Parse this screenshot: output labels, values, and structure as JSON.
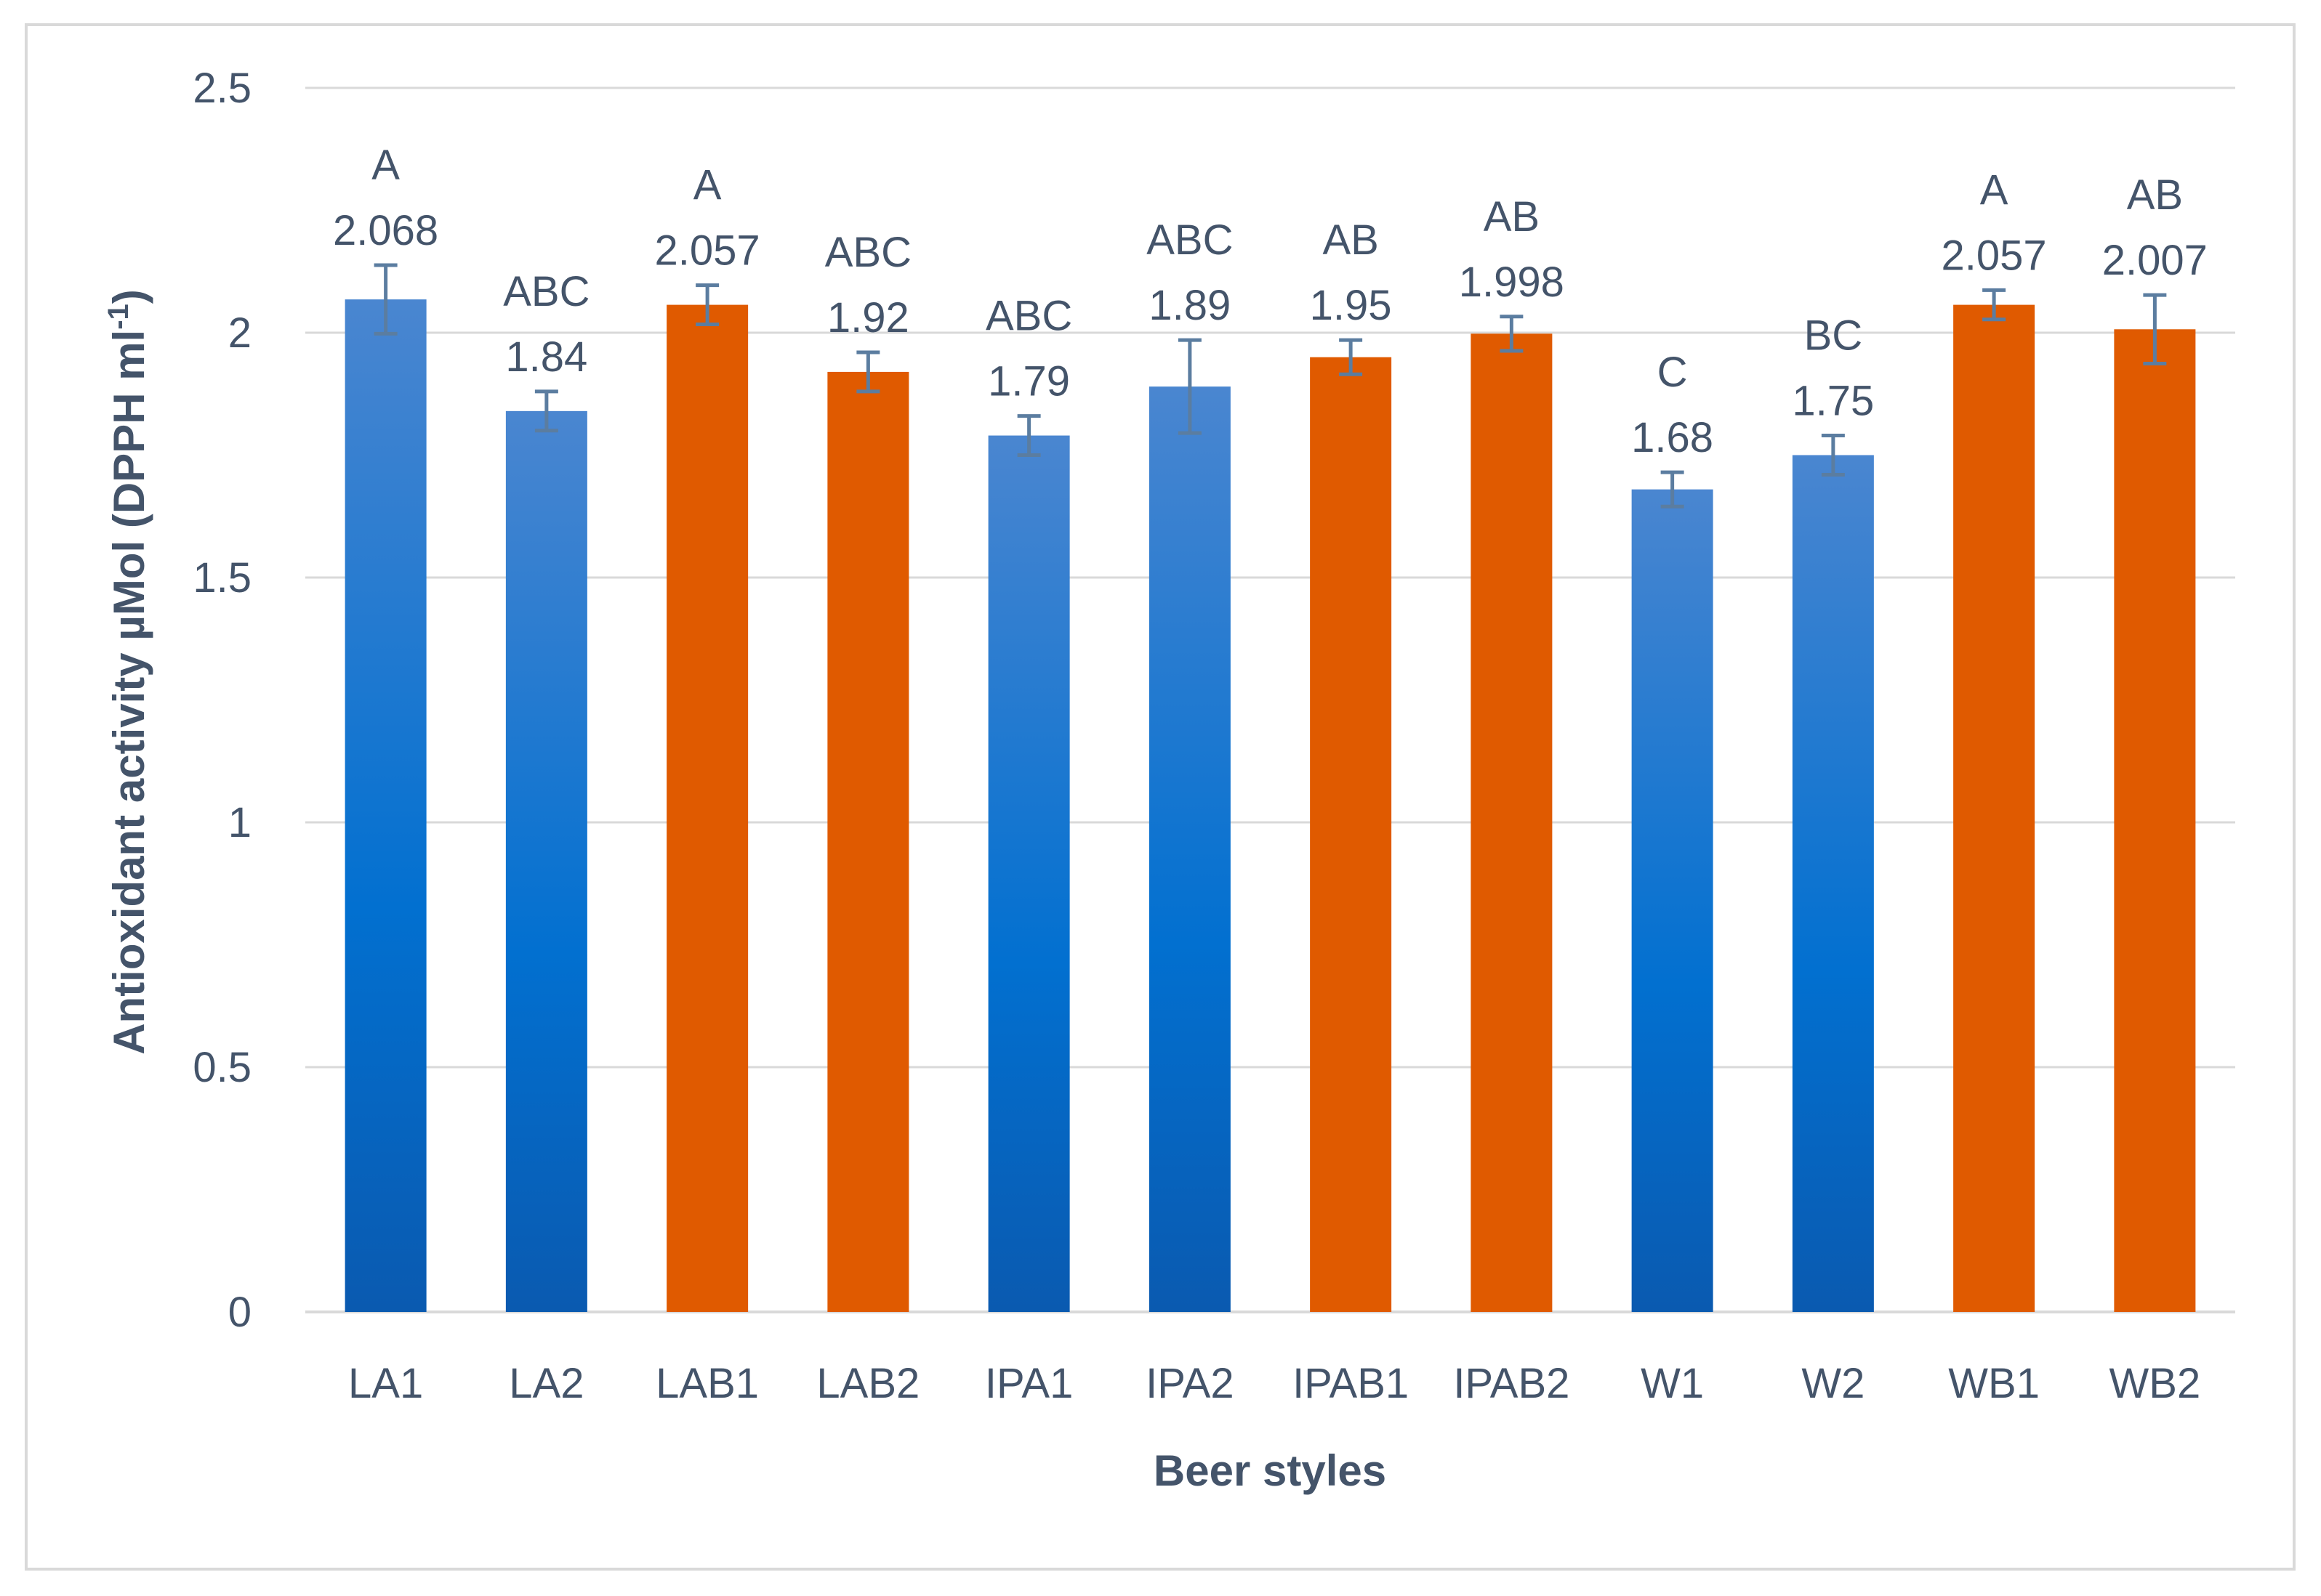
{
  "chart_data": {
    "type": "bar",
    "xlabel": "Beer styles",
    "ylabel": "Antioxidant activity µMol (DPPH ml",
    "ylabel_superscript": "-1",
    "ylabel_close": ")",
    "ylim": [
      0,
      2.5
    ],
    "yticks": [
      {
        "value": 0,
        "label": "0"
      },
      {
        "value": 0.5,
        "label": "0.5"
      },
      {
        "value": 1,
        "label": "1"
      },
      {
        "value": 1.5,
        "label": "1.5"
      },
      {
        "value": 2,
        "label": "2"
      },
      {
        "value": 2.5,
        "label": "2.5"
      }
    ],
    "grid": true,
    "colors": {
      "blue_top": "#4a86d0",
      "blue_mid": "#0270d0",
      "blue_bottom": "#0a5ab0",
      "orange": "#e05a00",
      "grid": "#d9d9d9",
      "error_bar": "#5b7da0",
      "text": "#44546a"
    },
    "categories": [
      "LA1",
      "LA2",
      "LAB1",
      "LAB2",
      "IPA1",
      "IPA2",
      "IPAB1",
      "IPAB2",
      "W1",
      "W2",
      "WB1",
      "WB2"
    ],
    "bars": [
      {
        "category": "LA1",
        "value": 2.068,
        "value_label": "2.068",
        "letter": "A",
        "error": 0.07,
        "color": "blue"
      },
      {
        "category": "LA2",
        "value": 1.84,
        "value_label": "1.84",
        "letter": "ABC",
        "error": 0.04,
        "color": "blue"
      },
      {
        "category": "LAB1",
        "value": 2.057,
        "value_label": "2.057",
        "letter": "A",
        "error": 0.04,
        "color": "orange"
      },
      {
        "category": "LAB2",
        "value": 1.92,
        "value_label": "1.92",
        "letter": "ABC",
        "error": 0.04,
        "color": "orange"
      },
      {
        "category": "IPA1",
        "value": 1.79,
        "value_label": "1.79",
        "letter": "ABC",
        "error": 0.04,
        "color": "blue"
      },
      {
        "category": "IPA2",
        "value": 1.89,
        "value_label": "1.89",
        "letter": "ABC",
        "error": 0.095,
        "color": "blue"
      },
      {
        "category": "IPAB1",
        "value": 1.95,
        "value_label": "1.95",
        "letter": "AB",
        "error": 0.035,
        "color": "orange"
      },
      {
        "category": "IPAB2",
        "value": 1.998,
        "value_label": "1.998",
        "letter": "AB",
        "error": 0.035,
        "color": "orange"
      },
      {
        "category": "W1",
        "value": 1.68,
        "value_label": "1.68",
        "letter": "C",
        "error": 0.035,
        "color": "blue"
      },
      {
        "category": "W2",
        "value": 1.75,
        "value_label": "1.75",
        "letter": "BC",
        "error": 0.04,
        "color": "blue"
      },
      {
        "category": "WB1",
        "value": 2.057,
        "value_label": "2.057",
        "letter": "A",
        "error": 0.03,
        "color": "orange"
      },
      {
        "category": "WB2",
        "value": 2.007,
        "value_label": "2.007",
        "letter": "AB",
        "error": 0.07,
        "color": "orange"
      }
    ]
  }
}
